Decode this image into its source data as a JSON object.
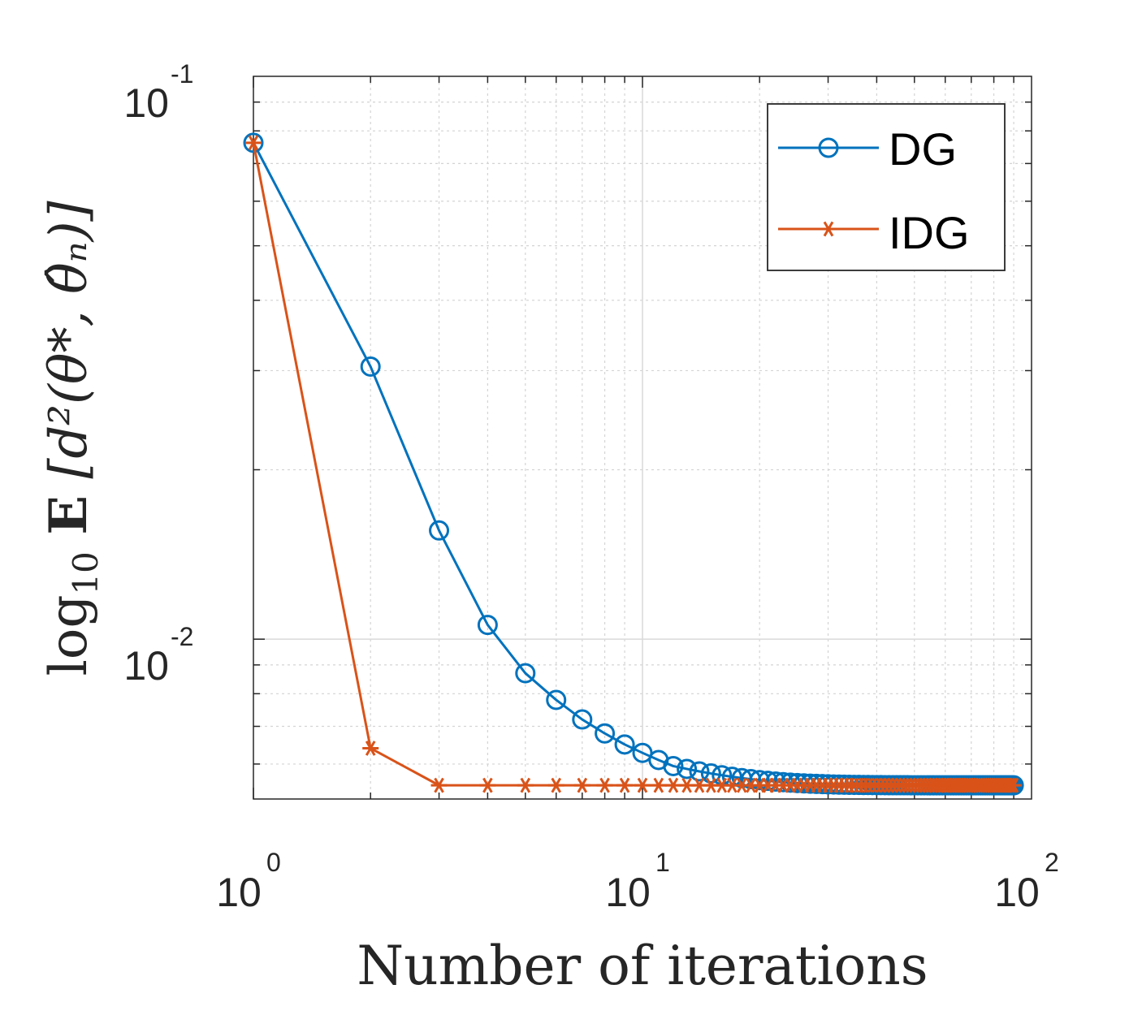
{
  "chart_data": {
    "type": "line",
    "x_scale": "log",
    "y_scale": "log",
    "xlim": [
      1,
      100
    ],
    "ylim": [
      0.0052,
      0.1
    ],
    "grid": true,
    "minor_grid": true,
    "xlabel": "Number of iterations",
    "ylabel": {
      "prefix": "log",
      "prefix_sub": "10",
      "operator": "E",
      "body": "[d²(θ*, θ̂ₙ)]"
    },
    "x_ticks": [
      {
        "value": 1,
        "base": "10",
        "exp": "0"
      },
      {
        "value": 10,
        "base": "10",
        "exp": "1"
      },
      {
        "value": 100,
        "base": "10",
        "exp": "2"
      }
    ],
    "y_ticks": [
      {
        "value": 0.01,
        "base": "10",
        "exp": "-2"
      },
      {
        "value": 0.1,
        "base": "10",
        "exp": "-1"
      }
    ],
    "legend_position": "top-right",
    "series": [
      {
        "name": "DG",
        "color": "#0072BD",
        "marker": "circle",
        "start": 1,
        "end": 90,
        "values_head": [
          0.0762,
          0.0305,
          0.0156,
          0.0106,
          0.0087,
          0.0078,
          0.0072,
          0.0068,
          0.0065,
          0.00628,
          0.0061,
          0.00595
        ],
        "floor": 0.0055,
        "tail_decay": 0.167
      },
      {
        "name": "IDG",
        "color": "#D95319",
        "marker": "asterisk",
        "start": 1,
        "end": 90,
        "values_head": [
          0.0762,
          0.0064
        ],
        "floor": 0.0055
      }
    ]
  }
}
